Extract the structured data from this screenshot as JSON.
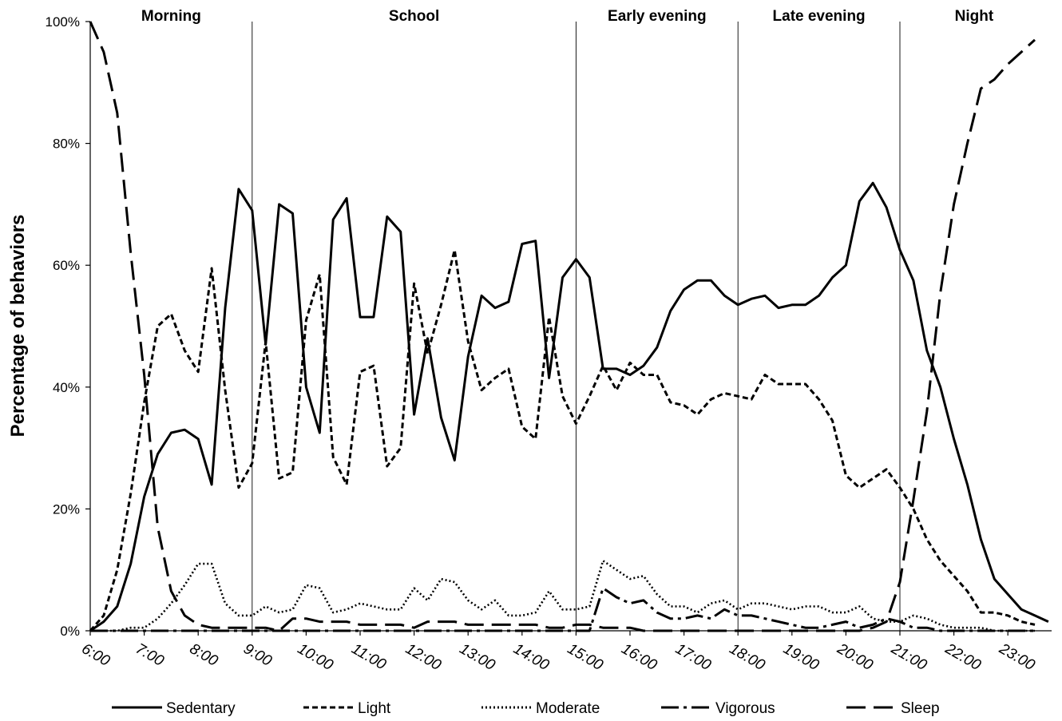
{
  "chart_data": {
    "type": "line",
    "ylabel": "Percentage of behaviors",
    "yticks": [
      "0%",
      "20%",
      "40%",
      "60%",
      "80%",
      "100%"
    ],
    "ylim": [
      0,
      100
    ],
    "x_start": "6:00",
    "x_step_minutes": 15,
    "xtick_labels": [
      "6:00",
      "7:00",
      "8:00",
      "9:00",
      "10:00",
      "11:00",
      "12:00",
      "13:00",
      "14:00",
      "15:00",
      "16:00",
      "17:00",
      "18:00",
      "19:00",
      "20:00",
      "21:00",
      "22:00",
      "23:00"
    ],
    "periods": [
      {
        "label": "Morning",
        "start": "6:00",
        "end": "9:00"
      },
      {
        "label": "School",
        "start": "9:00",
        "end": "15:00"
      },
      {
        "label": "Early evening",
        "start": "15:00",
        "end": "18:00"
      },
      {
        "label": "Late evening",
        "start": "18:00",
        "end": "21:00"
      },
      {
        "label": "Night",
        "start": "21:00",
        "end": "23:45"
      }
    ],
    "series": [
      {
        "name": "Sedentary",
        "style": "solid",
        "values": [
          0,
          1.5,
          4,
          11,
          22,
          29,
          32.5,
          33,
          31.5,
          24,
          53,
          72.5,
          69,
          47,
          70,
          68.5,
          40,
          32.5,
          67.5,
          71,
          51.5,
          51.5,
          68,
          65.5,
          35.5,
          48,
          35,
          28,
          45,
          55,
          53,
          54,
          63.5,
          64,
          41.5,
          58,
          61,
          58,
          43,
          43,
          42,
          43.5,
          46.5,
          52.5,
          56,
          57.5,
          57.5,
          55,
          53.5,
          54.5,
          55,
          53,
          53.5,
          53.5,
          55,
          58,
          60,
          70.5,
          73.5,
          69.5,
          62.5,
          57.5,
          46,
          40,
          31.5,
          24,
          15,
          8.5,
          6,
          3.5,
          2.5,
          1.5
        ]
      },
      {
        "name": "Light",
        "style": "short-dash",
        "values": [
          0,
          2.5,
          10,
          22.5,
          37.5,
          50,
          52,
          46,
          42.5,
          59.5,
          39.5,
          23.5,
          27.5,
          47.5,
          25,
          26,
          51,
          58.5,
          28.5,
          24,
          42.5,
          43.5,
          27,
          30,
          57,
          45.5,
          53.5,
          62.5,
          47.5,
          39.5,
          41.5,
          43,
          33.5,
          31.5,
          51.5,
          38.5,
          34,
          38.5,
          43.5,
          39.5,
          44,
          42,
          42,
          37.5,
          37,
          35.5,
          38,
          39,
          38.5,
          38,
          42,
          40.5,
          40.5,
          40.5,
          38,
          34.5,
          25.5,
          23.5,
          25,
          26.5,
          23.5,
          20,
          15,
          11.5,
          9,
          6.5,
          3,
          3,
          2.5,
          1.5,
          1
        ]
      },
      {
        "name": "Moderate",
        "style": "dotted",
        "values": [
          0,
          0,
          0,
          0.5,
          0.5,
          2,
          4.5,
          7.5,
          11,
          11,
          4.5,
          2.5,
          2.5,
          4,
          3,
          3.5,
          7.5,
          7,
          3,
          3.5,
          4.5,
          4,
          3.5,
          3.5,
          7,
          5,
          8.5,
          8,
          5,
          3.5,
          5,
          2.5,
          2.5,
          3,
          6.5,
          3.5,
          3.5,
          4,
          11.5,
          10,
          8.5,
          9,
          6,
          4,
          4,
          3,
          4.5,
          5,
          3.5,
          4.5,
          4.5,
          4,
          3.5,
          4,
          4,
          3,
          3,
          4,
          2,
          1.5,
          1.5,
          2.5,
          2,
          1,
          0.5,
          0.5,
          0.5,
          0,
          0,
          0,
          0
        ]
      },
      {
        "name": "Vigorous",
        "style": "dash-dot",
        "values": [
          0,
          0,
          0,
          0,
          0,
          0,
          0,
          0,
          0,
          0,
          0,
          0,
          0,
          0,
          0,
          0,
          0,
          0,
          0,
          0,
          0,
          0,
          0,
          0,
          0,
          0,
          0,
          0,
          0,
          0,
          0,
          0,
          0,
          0,
          0,
          0,
          0,
          0,
          7,
          5.5,
          4.5,
          5,
          3,
          2,
          2,
          2.5,
          2,
          3.5,
          2.5,
          2.5,
          2,
          1.5,
          1,
          0.5,
          0.5,
          1,
          1.5,
          0.5,
          1,
          2,
          1.5,
          0.5,
          0.5,
          0,
          0,
          0,
          0,
          0,
          0,
          0,
          0
        ]
      },
      {
        "name": "Sleep",
        "style": "long-dash",
        "values": [
          100,
          95,
          85,
          62,
          42,
          17,
          6.5,
          2.5,
          1,
          0.5,
          0.5,
          0.5,
          0.5,
          0.5,
          0,
          2,
          2,
          1.5,
          1.5,
          1.5,
          1,
          1,
          1,
          1,
          0.5,
          1.5,
          1.5,
          1.5,
          1,
          1,
          1,
          1,
          1,
          1,
          0.5,
          0.5,
          1,
          1,
          0.5,
          0.5,
          0.5,
          0,
          0,
          0,
          0,
          0,
          0,
          0,
          0,
          0,
          0,
          0,
          0,
          0,
          0,
          0,
          0,
          0,
          0.5,
          1.5,
          8,
          21.5,
          36,
          55.5,
          70,
          80,
          89,
          90.5,
          93,
          95,
          97
        ]
      }
    ]
  }
}
